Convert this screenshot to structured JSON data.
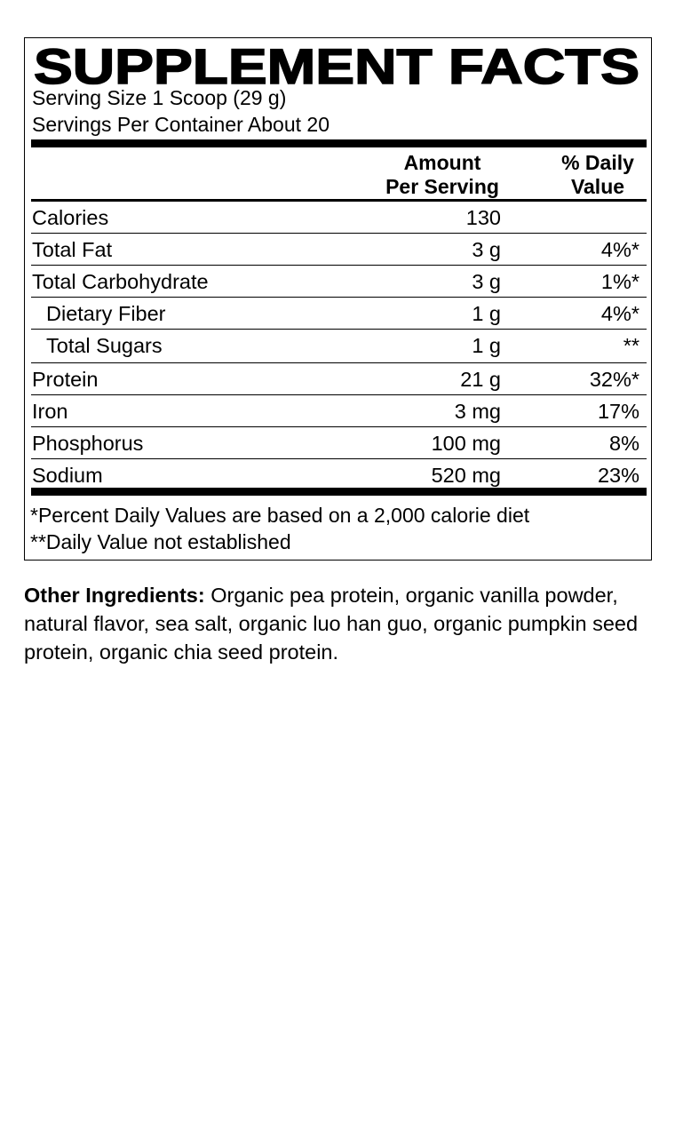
{
  "title": "SUPPLEMENT FACTS",
  "serving_size": "Serving Size 1 Scoop (29 g)",
  "servings_per_container": "Servings Per Container About 20",
  "header": {
    "amount_line1": "Amount",
    "amount_line2": "Per Serving",
    "dv_line1": "% Daily",
    "dv_line2": "Value"
  },
  "rows": [
    {
      "name": "Calories",
      "amount": "130",
      "dv": ""
    },
    {
      "name": "Total Fat",
      "amount": "3 g",
      "dv": "4%*"
    },
    {
      "name": "Total Carbohydrate",
      "amount": "3 g",
      "dv": "1%*"
    },
    {
      "name": "Dietary Fiber",
      "amount": "1 g",
      "dv": "4%*"
    },
    {
      "name": "Total Sugars",
      "amount": "1 g",
      "dv": "**"
    },
    {
      "name": "Protein",
      "amount": "21 g",
      "dv": "32%*"
    },
    {
      "name": "Iron",
      "amount": "3 mg",
      "dv": "17%"
    },
    {
      "name": "Phosphorus",
      "amount": "100 mg",
      "dv": "8%"
    },
    {
      "name": "Sodium",
      "amount": "520 mg",
      "dv": "23%"
    }
  ],
  "footnotes": [
    "*Percent Daily Values are based on a 2,000 calorie diet",
    "**Daily Value not established"
  ],
  "ingredients": {
    "label": "Other Ingredients:",
    "text": " Organic pea protein, organic vanilla powder, natural flavor, sea salt, organic luo han guo, organic pumpkin seed protein, organic chia seed protein."
  }
}
